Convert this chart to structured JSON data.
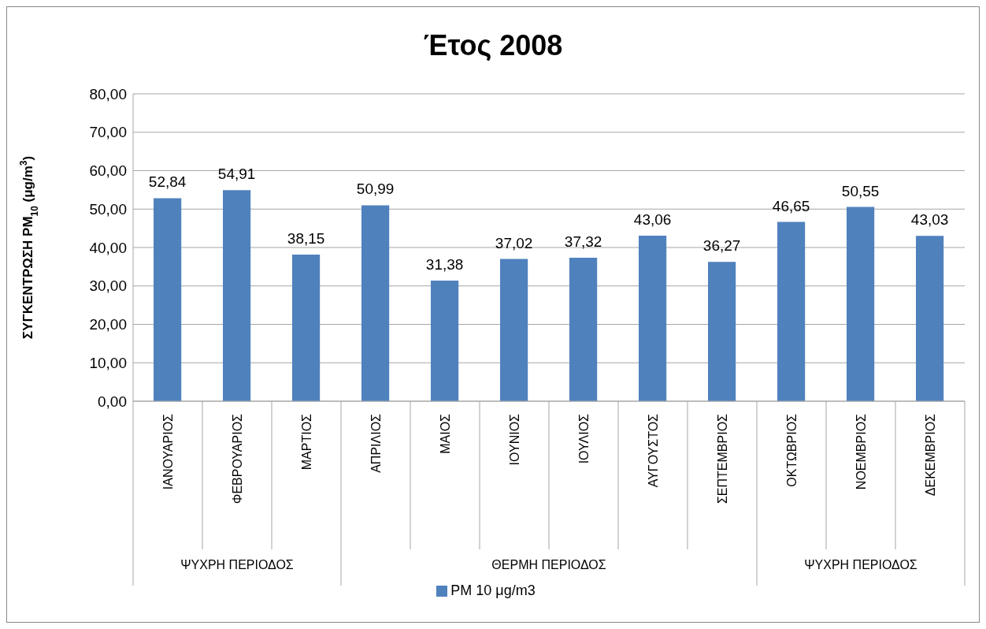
{
  "chart_data": {
    "type": "bar",
    "title": "Έτος 2008",
    "ylabel": "ΣΥΓΚΕΝΤΡΩΣΗ PM$_{10}$ (μg/m$^{3}$)",
    "categories": [
      "ΙΑΝΟΥΑΡΙΟΣ",
      "ΦΕΒΡΟΥΑΡΙΟΣ",
      "ΜΑΡΤΙΟΣ",
      "ΑΠΡΙΛΙΟΣ",
      "ΜΑΙΟΣ",
      "ΙΟΥΝΙΟΣ",
      "ΙΟΥΛΙΟΣ",
      "ΑΥΓΟΥΣΤΟΣ",
      "ΣΕΠΤΕΜΒΡΙΟΣ",
      "ΟΚΤΩΒΡΙΟΣ",
      "ΝΟΕΜΒΡΙΟΣ",
      "ΔΕΚΕΜΒΡΙΟΣ"
    ],
    "series": [
      {
        "name": "PM 10 μg/m3",
        "color": "#4f81bd",
        "values": [
          52.84,
          54.91,
          38.15,
          50.99,
          31.38,
          37.02,
          37.32,
          43.06,
          36.27,
          46.65,
          50.55,
          43.03
        ],
        "value_labels": [
          "52,84",
          "54,91",
          "38,15",
          "50,99",
          "31,38",
          "37,02",
          "37,32",
          "43,06",
          "36,27",
          "46,65",
          "50,55",
          "43,03"
        ]
      }
    ],
    "annotations": [
      "ΨΥΧΡΗ ΠΕΡΙΟΔΟΣ",
      "ΘΕΡΜΗ ΠΕΡΙΟΔΟΣ",
      "ΨΥΧΡΗ ΠΕΡΙΟΔΟΣ"
    ],
    "ylim": [
      0,
      80
    ],
    "yticks": [
      {
        "value": 0,
        "label": "0,00"
      },
      {
        "value": 10,
        "label": "10,00"
      },
      {
        "value": 20,
        "label": "20,00"
      },
      {
        "value": 30,
        "label": "30,00"
      },
      {
        "value": 40,
        "label": "40,00"
      },
      {
        "value": 50,
        "label": "50,00"
      },
      {
        "value": 60,
        "label": "60,00"
      },
      {
        "value": 70,
        "label": "70,00"
      },
      {
        "value": 80,
        "label": "80,00"
      }
    ],
    "grid": "y",
    "legend": "bottom"
  }
}
